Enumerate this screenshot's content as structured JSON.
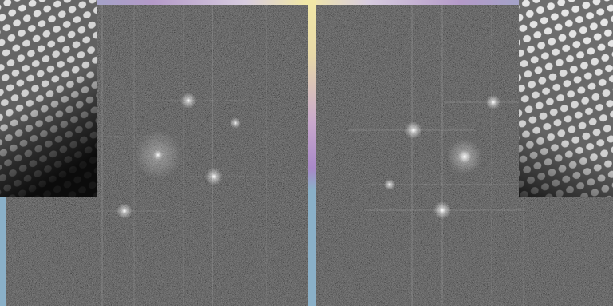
{
  "figure": {
    "panels": [
      {
        "id": "left",
        "content": "fft-spot-pattern"
      },
      {
        "id": "right",
        "content": "fft-spot-pattern"
      }
    ],
    "insets": [
      {
        "id": "left",
        "content": "atomic-lattice-image"
      },
      {
        "id": "right",
        "content": "atomic-lattice-image"
      }
    ],
    "colors": {
      "frame": "#8ab0c8",
      "accent_purple": "#b49ac8",
      "accent_yellow": "#f2e8a6",
      "noise_background": "#3e3e3e"
    }
  }
}
